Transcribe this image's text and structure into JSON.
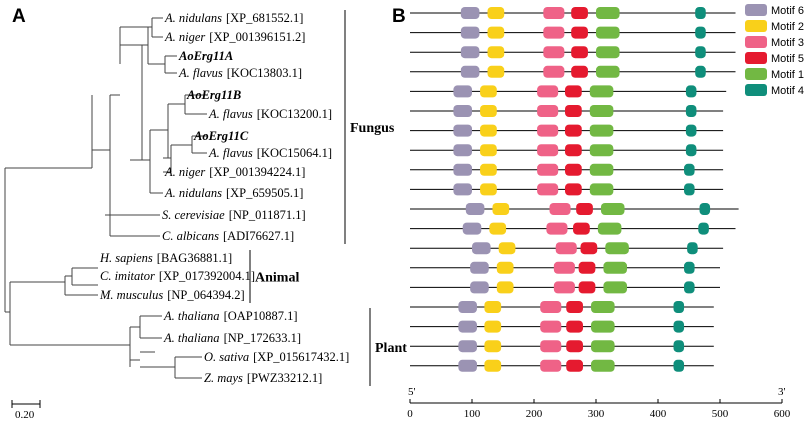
{
  "panels": {
    "a": "A",
    "b": "B"
  },
  "tree": {
    "leaves": [
      {
        "species": "A. nidulans",
        "accession": "[XP_681552.1]"
      },
      {
        "species": "A. niger",
        "accession": "[XP_001396151.2]"
      },
      {
        "gene": "AoErg11A"
      },
      {
        "species": "A. flavus",
        "accession": "[KOC13803.1]"
      },
      {
        "gene": "AoErg11B"
      },
      {
        "species": "A. flavus",
        "accession": "[KOC13200.1]"
      },
      {
        "gene": "AoErg11C"
      },
      {
        "species": "A. flavus",
        "accession": "[KOC15064.1]"
      },
      {
        "species": "A. niger",
        "accession": "[XP_001394224.1]"
      },
      {
        "species": "A. nidulans",
        "accession": "[XP_659505.1]"
      },
      {
        "species": "S. cerevisiae",
        "accession": "[NP_011871.1]"
      },
      {
        "species": "C. albicans",
        "accession": "[ADI76627.1]"
      },
      {
        "species": "H. sapiens",
        "accession": "[BAG36881.1]"
      },
      {
        "species": "C. imitator",
        "accession": "[XP_017392004.1]"
      },
      {
        "species": "M. musculus",
        "accession": "[NP_064394.2]"
      },
      {
        "species": "A. thaliana",
        "accession": "[OAP10887.1]"
      },
      {
        "species": "A. thaliana",
        "accession": "[NP_172633.1]"
      },
      {
        "species": "O. sativa",
        "accession": "[XP_015617432.1]"
      },
      {
        "species": "Z. mays",
        "accession": "[PWZ33212.1]"
      }
    ],
    "groups": [
      {
        "label": "Fungus",
        "first": 0,
        "last": 11
      },
      {
        "label": "Animal",
        "first": 12,
        "last": 14
      },
      {
        "label": "Plant",
        "first": 15,
        "last": 18
      }
    ],
    "scale_label": "0.20"
  },
  "motifs": {
    "legend": [
      {
        "name": "Motif 6",
        "color": "#9b93b3"
      },
      {
        "name": "Motif 2",
        "color": "#f9d01a"
      },
      {
        "name": "Motif 3",
        "color": "#ef6287"
      },
      {
        "name": "Motif 5",
        "color": "#e51a2f"
      },
      {
        "name": "Motif 1",
        "color": "#72b843"
      },
      {
        "name": "Motif 4",
        "color": "#0f8e7b"
      }
    ],
    "axis": {
      "min": 0,
      "max": 600,
      "ticks": [
        0,
        100,
        200,
        300,
        400,
        500,
        600
      ],
      "start_label": "5'",
      "end_label": "3'"
    },
    "proteins": [
      {
        "length": 525,
        "motifs": [
          [
            6,
            82
          ],
          [
            2,
            125
          ],
          [
            3,
            215
          ],
          [
            5,
            260
          ],
          [
            1,
            300
          ],
          [
            4,
            460
          ]
        ]
      },
      {
        "length": 525,
        "motifs": [
          [
            6,
            82
          ],
          [
            2,
            125
          ],
          [
            3,
            215
          ],
          [
            5,
            260
          ],
          [
            1,
            300
          ],
          [
            4,
            460
          ]
        ]
      },
      {
        "length": 525,
        "motifs": [
          [
            6,
            82
          ],
          [
            2,
            125
          ],
          [
            3,
            215
          ],
          [
            5,
            260
          ],
          [
            1,
            300
          ],
          [
            4,
            460
          ]
        ]
      },
      {
        "length": 525,
        "motifs": [
          [
            6,
            82
          ],
          [
            2,
            125
          ],
          [
            3,
            215
          ],
          [
            5,
            260
          ],
          [
            1,
            300
          ],
          [
            4,
            460
          ]
        ]
      },
      {
        "length": 510,
        "motifs": [
          [
            6,
            70
          ],
          [
            2,
            113
          ],
          [
            3,
            205
          ],
          [
            5,
            250
          ],
          [
            1,
            290
          ],
          [
            4,
            445
          ]
        ]
      },
      {
        "length": 505,
        "motifs": [
          [
            6,
            70
          ],
          [
            2,
            113
          ],
          [
            3,
            205
          ],
          [
            5,
            250
          ],
          [
            1,
            290
          ],
          [
            4,
            445
          ]
        ]
      },
      {
        "length": 505,
        "motifs": [
          [
            6,
            70
          ],
          [
            2,
            113
          ],
          [
            3,
            205
          ],
          [
            5,
            250
          ],
          [
            1,
            290
          ],
          [
            4,
            445
          ]
        ]
      },
      {
        "length": 505,
        "motifs": [
          [
            6,
            70
          ],
          [
            2,
            113
          ],
          [
            3,
            205
          ],
          [
            5,
            250
          ],
          [
            1,
            290
          ],
          [
            4,
            445
          ]
        ]
      },
      {
        "length": 505,
        "motifs": [
          [
            6,
            70
          ],
          [
            2,
            113
          ],
          [
            3,
            205
          ],
          [
            5,
            250
          ],
          [
            1,
            290
          ],
          [
            4,
            442
          ]
        ]
      },
      {
        "length": 505,
        "motifs": [
          [
            6,
            70
          ],
          [
            2,
            113
          ],
          [
            3,
            205
          ],
          [
            5,
            250
          ],
          [
            1,
            290
          ],
          [
            4,
            442
          ]
        ]
      },
      {
        "length": 530,
        "motifs": [
          [
            6,
            90
          ],
          [
            2,
            133
          ],
          [
            3,
            225
          ],
          [
            5,
            268
          ],
          [
            1,
            308
          ],
          [
            4,
            467
          ]
        ]
      },
      {
        "length": 525,
        "motifs": [
          [
            6,
            85
          ],
          [
            2,
            128
          ],
          [
            3,
            220
          ],
          [
            5,
            263
          ],
          [
            1,
            303
          ],
          [
            4,
            465
          ]
        ]
      },
      {
        "length": 505,
        "motifs": [
          [
            6,
            100
          ],
          [
            2,
            143
          ],
          [
            3,
            235
          ],
          [
            5,
            275
          ],
          [
            1,
            315
          ],
          [
            4,
            447
          ]
        ]
      },
      {
        "length": 500,
        "motifs": [
          [
            6,
            97
          ],
          [
            2,
            140
          ],
          [
            3,
            232
          ],
          [
            5,
            272
          ],
          [
            1,
            312
          ],
          [
            4,
            442
          ]
        ]
      },
      {
        "length": 500,
        "motifs": [
          [
            6,
            97
          ],
          [
            2,
            140
          ],
          [
            3,
            232
          ],
          [
            5,
            272
          ],
          [
            1,
            312
          ],
          [
            4,
            442
          ]
        ]
      },
      {
        "length": 490,
        "motifs": [
          [
            6,
            78
          ],
          [
            2,
            120
          ],
          [
            3,
            210
          ],
          [
            5,
            252
          ],
          [
            1,
            292
          ],
          [
            4,
            425
          ]
        ]
      },
      {
        "length": 490,
        "motifs": [
          [
            6,
            78
          ],
          [
            2,
            120
          ],
          [
            3,
            210
          ],
          [
            5,
            252
          ],
          [
            1,
            292
          ],
          [
            4,
            425
          ]
        ]
      },
      {
        "length": 490,
        "motifs": [
          [
            6,
            78
          ],
          [
            2,
            120
          ],
          [
            3,
            210
          ],
          [
            5,
            252
          ],
          [
            1,
            292
          ],
          [
            4,
            425
          ]
        ]
      },
      {
        "length": 490,
        "motifs": [
          [
            6,
            78
          ],
          [
            2,
            120
          ],
          [
            3,
            210
          ],
          [
            5,
            252
          ],
          [
            1,
            292
          ],
          [
            4,
            425
          ]
        ]
      }
    ]
  }
}
